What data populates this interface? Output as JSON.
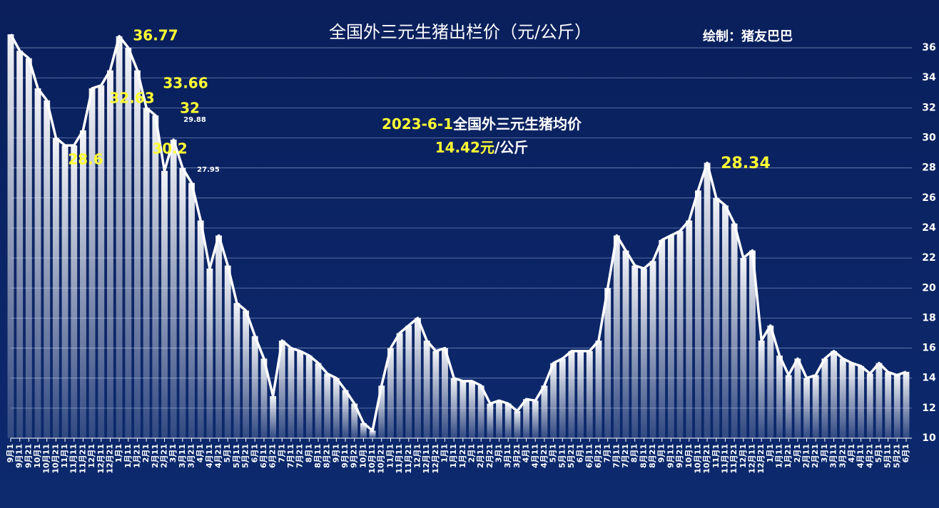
{
  "chart_data": {
    "type": "line",
    "title": "全国外三元生猪出栏价（元/公斤）",
    "credit": "绘制：猪友巴巴",
    "subtitle_lines": [
      [
        "2023-6-1",
        "全国外三元生猪均价"
      ],
      [
        "14.42元",
        "/公斤"
      ]
    ],
    "subtitle_colors": [
      "#ffff33",
      "#ffffff"
    ],
    "categories": [
      "9月1",
      "9月11",
      "9月21",
      "10月1",
      "10月11",
      "10月21",
      "11月1",
      "11月11",
      "11月21",
      "12月1",
      "12月11",
      "12月21",
      "1月1",
      "1月11",
      "1月21",
      "2月1",
      "2月11",
      "2月21",
      "3月1",
      "3月11",
      "3月21",
      "4月1",
      "4月11",
      "4月21",
      "5月1",
      "5月11",
      "5月21",
      "6月1",
      "6月11",
      "6月21",
      "7月1",
      "7月11",
      "7月21",
      "8月1",
      "8月11",
      "8月21",
      "9月1",
      "9月11",
      "9月21",
      "10月1",
      "10月11",
      "10月21",
      "11月1",
      "11月11",
      "11月21",
      "12月1",
      "12月11",
      "12月21",
      "1月1",
      "1月11",
      "1月21",
      "2月1",
      "2月11",
      "2月21",
      "3月1",
      "3月11",
      "3月21",
      "4月1",
      "4月11",
      "4月21",
      "5月1",
      "5月11",
      "5月21",
      "6月1",
      "6月11",
      "6月21",
      "7月1",
      "7月11",
      "7月21",
      "8月1",
      "8月11",
      "8月21",
      "9月1",
      "9月11",
      "9月21",
      "10月1",
      "10月11",
      "10月21",
      "11月1",
      "11月11",
      "11月21",
      "12月1",
      "12月11",
      "12月21",
      "1月1",
      "1月11",
      "1月21",
      "2月1",
      "2月11",
      "2月21",
      "3月1",
      "3月11",
      "3月21",
      "4月1",
      "4月11",
      "4月21",
      "5月1",
      "5月11",
      "5月21",
      "6月1"
    ],
    "values": [
      36.9,
      35.8,
      35.3,
      33.3,
      32.5,
      30.0,
      29.5,
      29.5,
      30.5,
      33.3,
      33.5,
      34.5,
      36.77,
      36.0,
      34.5,
      32.0,
      31.5,
      27.8,
      29.88,
      28.0,
      27.0,
      24.5,
      21.3,
      23.5,
      21.5,
      19.0,
      18.5,
      16.8,
      15.3,
      12.8,
      16.5,
      16.0,
      15.8,
      15.5,
      15.0,
      14.3,
      14.0,
      13.2,
      12.3,
      11.0,
      10.5,
      13.5,
      16.0,
      17.0,
      17.5,
      18.0,
      16.5,
      15.8,
      16.0,
      14.0,
      13.8,
      13.8,
      13.5,
      12.3,
      12.5,
      12.3,
      11.8,
      12.6,
      12.5,
      13.5,
      15.0,
      15.3,
      15.8,
      15.8,
      15.8,
      16.5,
      20.0,
      23.5,
      22.5,
      21.5,
      21.3,
      21.8,
      23.2,
      23.5,
      23.8,
      24.5,
      26.5,
      28.34,
      26.0,
      25.5,
      24.3,
      22.0,
      22.5,
      16.5,
      17.5,
      15.5,
      14.2,
      15.3,
      14.0,
      14.2,
      15.3,
      15.8,
      15.3,
      15.0,
      14.8,
      14.3,
      15.0,
      14.4,
      14.2,
      14.42
    ],
    "color": "#ffffff",
    "annotations": [
      {
        "text": "36.77",
        "color": "#ffff33"
      },
      {
        "text": "33.66",
        "color": "#ffff33"
      },
      {
        "text": "32.63",
        "color": "#ffff33"
      },
      {
        "text": "32",
        "color": "#ffff33"
      },
      {
        "text": "30.2",
        "color": "#ffff33"
      },
      {
        "text": "28.6",
        "color": "#ffff33"
      },
      {
        "text": "28.34",
        "color": "#ffff33"
      },
      {
        "text": "29.88",
        "color": "#ffffff"
      },
      {
        "text": "27.95",
        "color": "#ffffff"
      }
    ],
    "ylim": [
      10,
      37
    ],
    "yticks": [
      10,
      12,
      14,
      16,
      18,
      20,
      22,
      24,
      26,
      28,
      30,
      32,
      34,
      36
    ],
    "grid": true
  }
}
